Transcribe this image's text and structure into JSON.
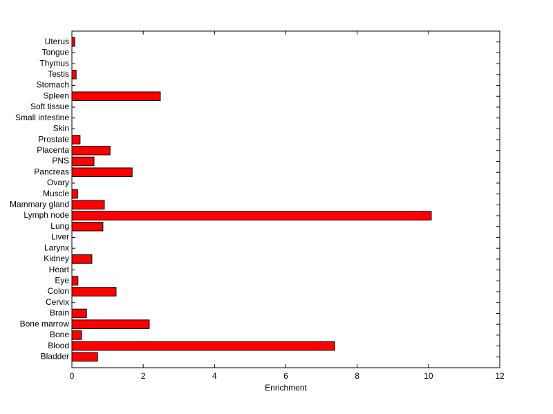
{
  "chart_data": {
    "type": "bar",
    "orientation": "horizontal",
    "x_label": "Enrichment",
    "categories": [
      "Bladder",
      "Blood",
      "Bone",
      "Bone marrow",
      "Brain",
      "Cervix",
      "Colon",
      "Eye",
      "Heart",
      "Kidney",
      "Larynx",
      "Liver",
      "Lung",
      "Lymph node",
      "Mammary gland",
      "Muscle",
      "Ovary",
      "Pancreas",
      "PNS",
      "Placenta",
      "Prostate",
      "Skin",
      "Small intestine",
      "Soft tissue",
      "Spleen",
      "Stomach",
      "Testis",
      "Thymus",
      "Tongue",
      "Uterus"
    ],
    "values": [
      0.72,
      7.37,
      0.27,
      2.17,
      0.41,
      0,
      1.24,
      0.17,
      0,
      0.56,
      0,
      0,
      0.87,
      10.08,
      0.91,
      0.16,
      0,
      1.69,
      0.62,
      1.07,
      0.23,
      0,
      0,
      0,
      2.48,
      0,
      0.12,
      0,
      0,
      0.08
    ],
    "color": "#ff0000",
    "xlim": [
      0,
      12
    ],
    "xticks": [
      0,
      2,
      4,
      6,
      8,
      10,
      12
    ]
  }
}
